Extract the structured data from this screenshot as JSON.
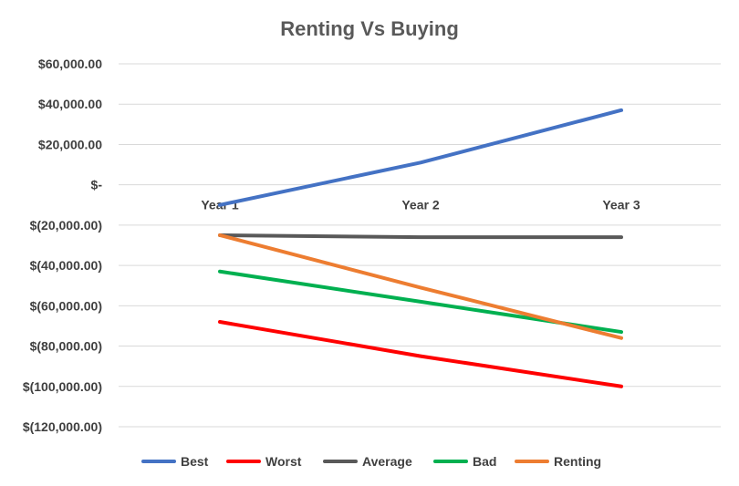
{
  "chart_data": {
    "type": "line",
    "title": "Renting Vs Buying",
    "categories": [
      "Year 1",
      "Year 2",
      "Year 3"
    ],
    "ylim": [
      -120000,
      60000
    ],
    "yticks": [
      60000,
      40000,
      20000,
      0,
      -20000,
      -40000,
      -60000,
      -80000,
      -100000,
      -120000
    ],
    "ytick_labels": [
      "$60,000.00",
      "$40,000.00",
      "$20,000.00",
      "$-",
      "$(20,000.00)",
      "$(40,000.00)",
      "$(60,000.00)",
      "$(80,000.00)",
      "$(100,000.00)",
      "$(120,000.00)"
    ],
    "grid": true,
    "legend_position": "bottom",
    "series": [
      {
        "name": "Best",
        "color": "#4472C4",
        "values": [
          -10000,
          11000,
          37000
        ]
      },
      {
        "name": "Worst",
        "color": "#FF0000",
        "values": [
          -68000,
          -85000,
          -100000
        ]
      },
      {
        "name": "Average",
        "color": "#595959",
        "values": [
          -25000,
          -26000,
          -26000
        ]
      },
      {
        "name": "Bad",
        "color": "#00B050",
        "values": [
          -43000,
          -58000,
          -73000
        ]
      },
      {
        "name": "Renting",
        "color": "#ED7D31",
        "values": [
          -25000,
          -51000,
          -76000
        ]
      }
    ]
  }
}
